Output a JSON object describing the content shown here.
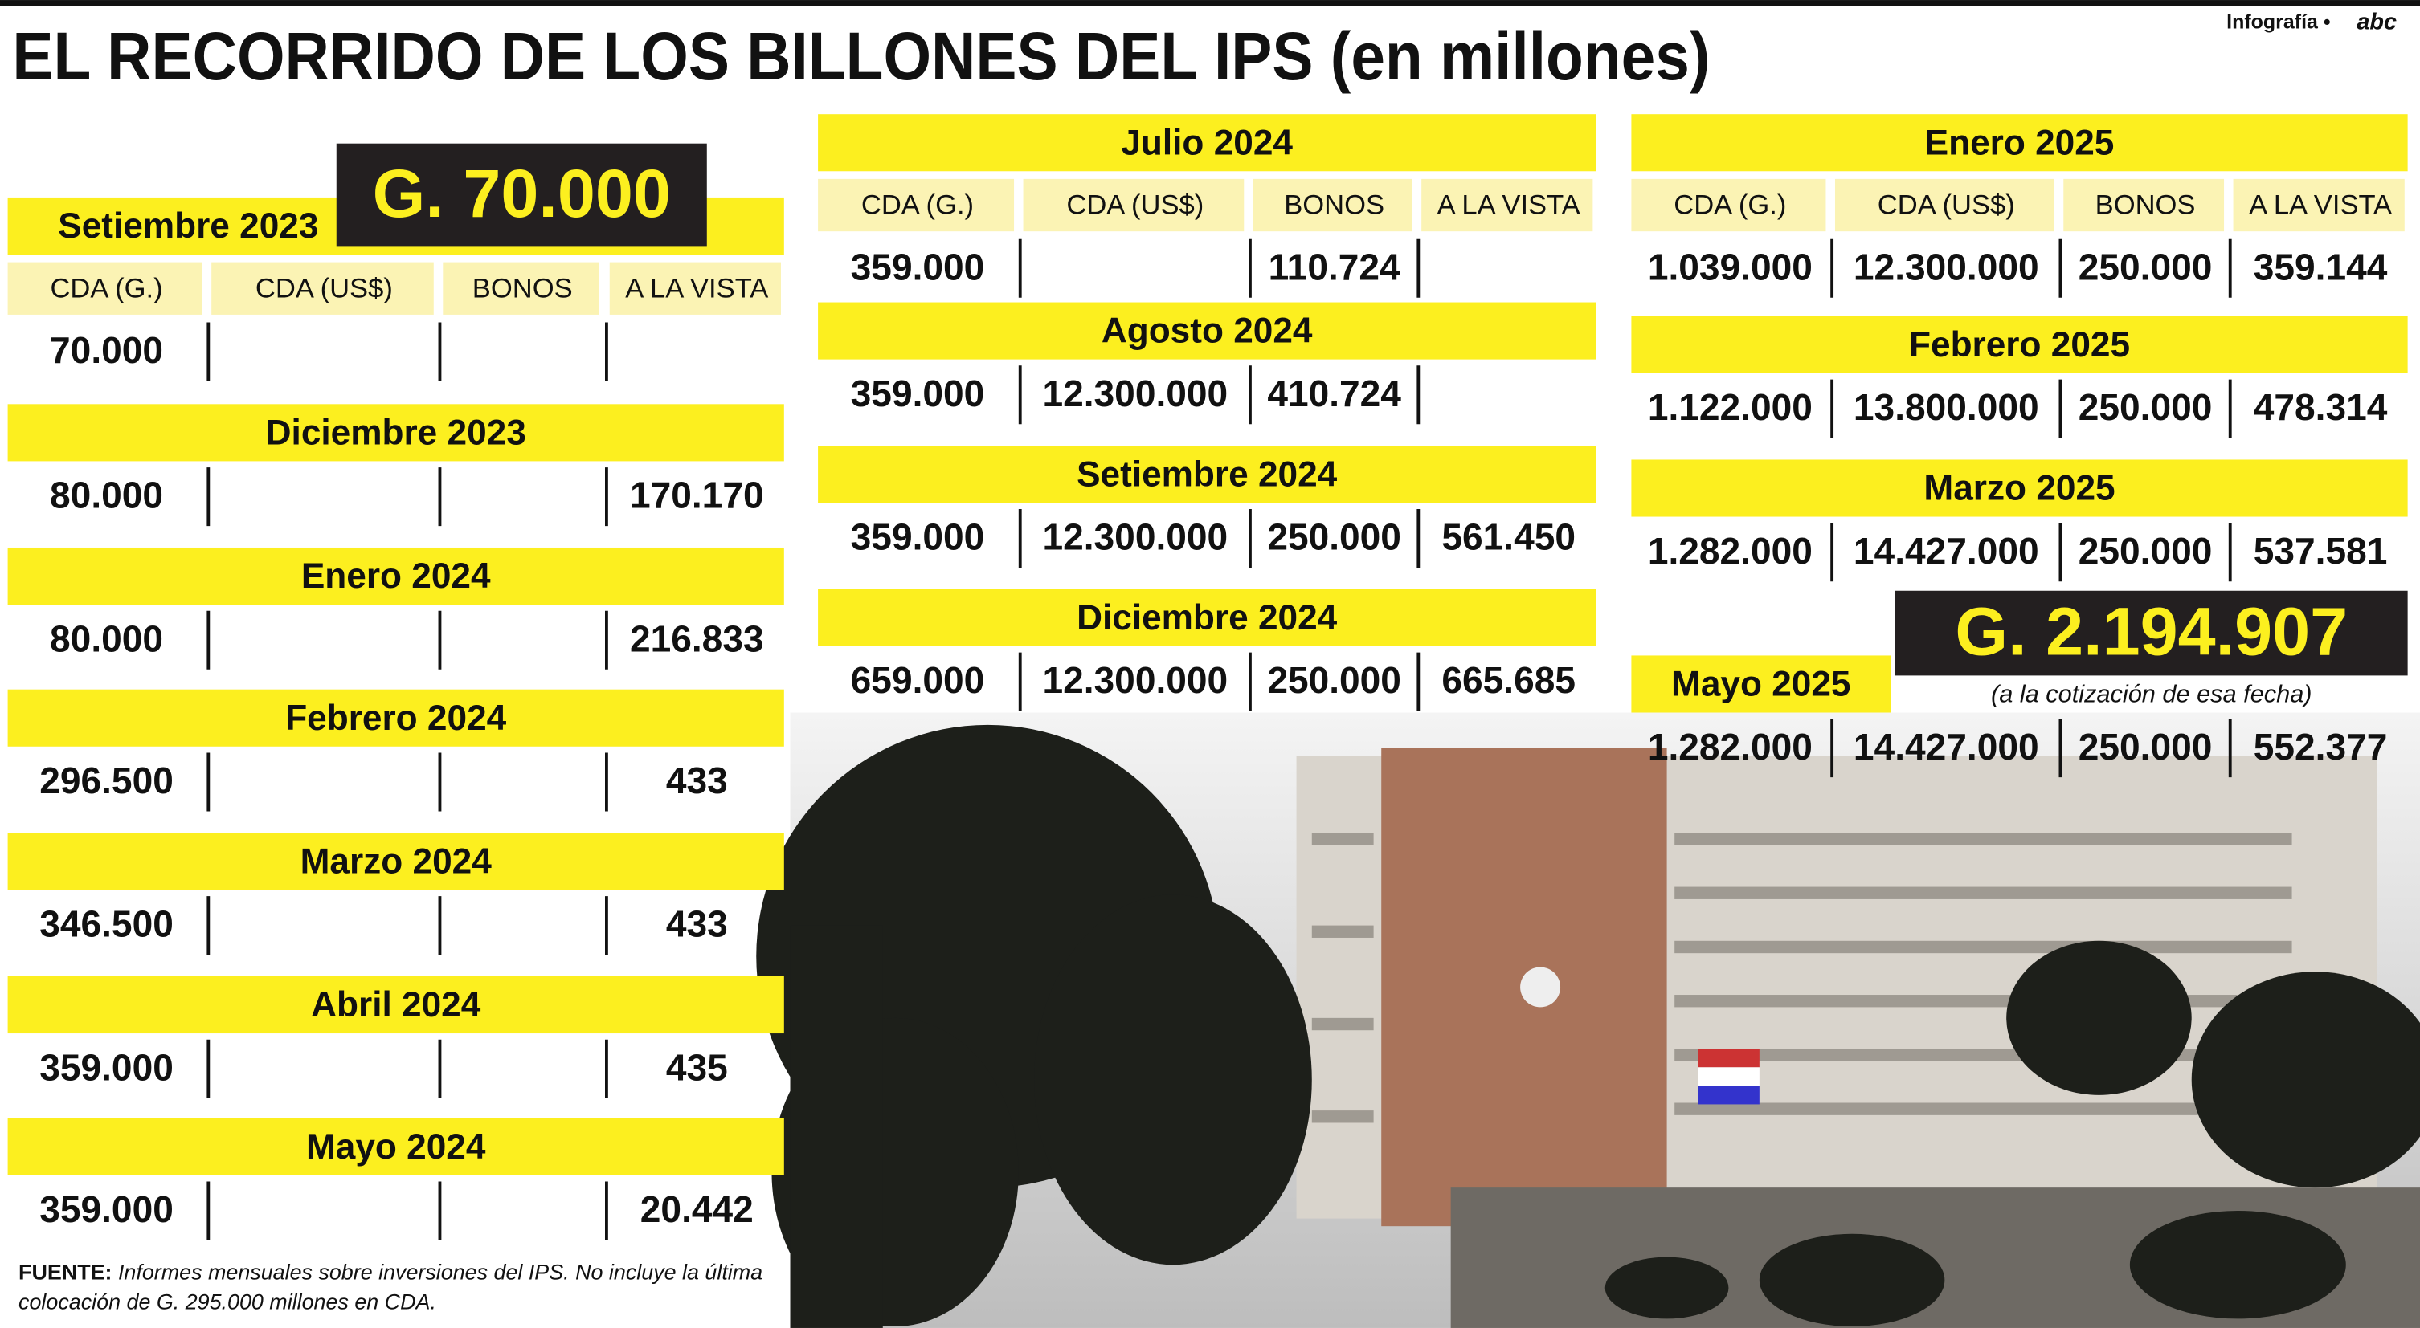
{
  "header": {
    "title": "EL RECORRIDO DE LOS BILLONES DEL IPS (en millones)",
    "credit": "Infografía •",
    "logo": "abc"
  },
  "columns": [
    "CDA (G.)",
    "CDA (US$)",
    "BONOS",
    "A LA VISTA"
  ],
  "highlights": [
    {
      "label": "G. 70.000"
    },
    {
      "label": "G. 2.194.907",
      "note": "(a la cotización de esa fecha)"
    }
  ],
  "periods": [
    {
      "month": "Setiembre 2023",
      "values": [
        "70.000",
        null,
        null,
        null
      ]
    },
    {
      "month": "Diciembre 2023",
      "values": [
        "80.000",
        null,
        null,
        "170.170"
      ]
    },
    {
      "month": "Enero 2024",
      "values": [
        "80.000",
        null,
        null,
        "216.833"
      ]
    },
    {
      "month": "Febrero 2024",
      "values": [
        "296.500",
        null,
        null,
        "433"
      ]
    },
    {
      "month": "Marzo 2024",
      "values": [
        "346.500",
        null,
        null,
        "433"
      ]
    },
    {
      "month": "Abril 2024",
      "values": [
        "359.000",
        null,
        null,
        "435"
      ]
    },
    {
      "month": "Mayo 2024",
      "values": [
        "359.000",
        null,
        null,
        "20.442"
      ]
    },
    {
      "month": "Julio 2024",
      "values": [
        "359.000",
        null,
        "110.724",
        null
      ]
    },
    {
      "month": "Agosto 2024",
      "values": [
        "359.000",
        "12.300.000",
        "410.724",
        null
      ]
    },
    {
      "month": "Setiembre 2024",
      "values": [
        "359.000",
        "12.300.000",
        "250.000",
        "561.450"
      ]
    },
    {
      "month": "Diciembre 2024",
      "values": [
        "659.000",
        "12.300.000",
        "250.000",
        "665.685"
      ]
    },
    {
      "month": "Enero 2025",
      "values": [
        "1.039.000",
        "12.300.000",
        "250.000",
        "359.144"
      ]
    },
    {
      "month": "Febrero 2025",
      "values": [
        "1.122.000",
        "13.800.000",
        "250.000",
        "478.314"
      ]
    },
    {
      "month": "Marzo 2025",
      "values": [
        "1.282.000",
        "14.427.000",
        "250.000",
        "537.581"
      ]
    },
    {
      "month": "Mayo 2025",
      "values": [
        "1.282.000",
        "14.427.000",
        "250.000",
        "552.377"
      ]
    }
  ],
  "footer": {
    "label": "FUENTE:",
    "text": "Informes mensuales sobre inversiones del IPS. No incluye la última colocación de G. 295.000 millones en CDA."
  }
}
